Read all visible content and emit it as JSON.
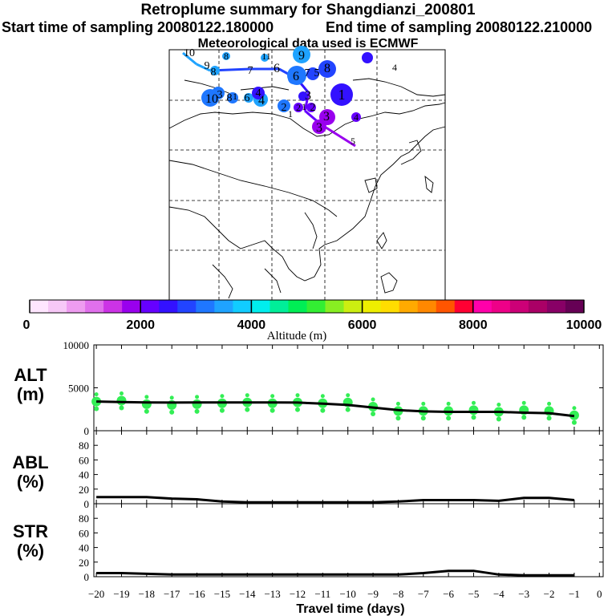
{
  "title": "Retroplume summary for Shangdianzi_200801",
  "subtitle_start": "Start time of sampling 20080122.180000",
  "subtitle_end": "End time of sampling 20080122.210000",
  "subtitle_met": "Meteorological data used is ECMWF",
  "colorbar": {
    "label": "Altitude (m)",
    "tick_labels": [
      "0",
      "2000",
      "4000",
      "6000",
      "8000",
      "10000"
    ],
    "colors": [
      "#ffe6ff",
      "#f7c8f7",
      "#ee9cf0",
      "#e070ec",
      "#cc33e6",
      "#9900ee",
      "#6600ff",
      "#3311ff",
      "#2244ff",
      "#1f77ff",
      "#1fa3ff",
      "#11ccff",
      "#00eeee",
      "#00ee99",
      "#00ee55",
      "#33ee33",
      "#88ee22",
      "#ccee11",
      "#eeee00",
      "#ffdd00",
      "#ffaa00",
      "#ff8800",
      "#ff5500",
      "#ff0033",
      "#ff00aa",
      "#ee0088",
      "#cc0077",
      "#aa0066",
      "#880066",
      "#660055"
    ]
  },
  "map_labels": [
    "10",
    "8",
    "11",
    "9",
    "4",
    "9",
    "8",
    "7",
    "6",
    "6",
    "7",
    "5",
    "8",
    "10",
    "3",
    "8",
    "1",
    "6",
    "4",
    "4",
    "3",
    "1",
    "2",
    "2",
    "1",
    "2",
    "3",
    "3",
    "4",
    "1",
    "5"
  ],
  "chart_data": [
    {
      "type": "line",
      "panel": "ALT",
      "ylabel": "ALT\n(m)",
      "xlabel": "Travel time (days)",
      "x_ticks": [
        -20,
        -19,
        -18,
        -17,
        -16,
        -15,
        -14,
        -13,
        -12,
        -11,
        -10,
        -9,
        -8,
        -7,
        -6,
        -5,
        -4,
        -3,
        -2,
        -1,
        0
      ],
      "ylim": [
        0,
        10000
      ],
      "y_ticks": [
        0,
        5000,
        10000
      ],
      "x": [
        -20,
        -19,
        -18,
        -17,
        -16,
        -15,
        -14,
        -13,
        -12,
        -11,
        -10,
        -9,
        -8,
        -7,
        -6,
        -5,
        -4,
        -3,
        -2,
        -1
      ],
      "values": [
        3400,
        3350,
        3300,
        3280,
        3300,
        3300,
        3300,
        3300,
        3280,
        3150,
        3000,
        2700,
        2400,
        2250,
        2200,
        2200,
        2200,
        2100,
        2050,
        1700
      ],
      "scatter_x": [
        -20,
        -19,
        -18,
        -17,
        -16,
        -15,
        -14,
        -13,
        -12,
        -11,
        -10,
        -9,
        -8,
        -7,
        -6,
        -5,
        -4,
        -3,
        -2,
        -1
      ],
      "scatter_y": [
        3400,
        3500,
        3100,
        3000,
        3100,
        3200,
        3300,
        3200,
        3300,
        3200,
        3300,
        2800,
        2300,
        2300,
        2300,
        2400,
        2200,
        2400,
        2300,
        1800
      ]
    },
    {
      "type": "line",
      "panel": "ABL",
      "ylabel": "ABL\n(%)",
      "ylim": [
        0,
        100
      ],
      "y_ticks": [
        0,
        20,
        40,
        60,
        80
      ],
      "x": [
        -20,
        -19,
        -18,
        -17,
        -16,
        -15,
        -14,
        -13,
        -12,
        -11,
        -10,
        -9,
        -8,
        -7,
        -6,
        -5,
        -4,
        -3,
        -2,
        -1
      ],
      "values": [
        9,
        9,
        9,
        7,
        6,
        3,
        2,
        2,
        2,
        2,
        2,
        2,
        3,
        5,
        5,
        5,
        4,
        8,
        8,
        5
      ]
    },
    {
      "type": "line",
      "panel": "STR",
      "ylabel": "STR\n(%)",
      "ylim": [
        0,
        100
      ],
      "y_ticks": [
        0,
        20,
        40,
        60,
        80
      ],
      "x": [
        -20,
        -19,
        -18,
        -17,
        -16,
        -15,
        -14,
        -13,
        -12,
        -11,
        -10,
        -9,
        -8,
        -7,
        -6,
        -5,
        -4,
        -3,
        -2,
        -1
      ],
      "values": [
        5,
        5,
        4,
        3,
        3,
        3,
        3,
        3,
        3,
        3,
        3,
        3,
        3,
        5,
        8,
        8,
        3,
        2,
        2,
        2
      ]
    }
  ]
}
